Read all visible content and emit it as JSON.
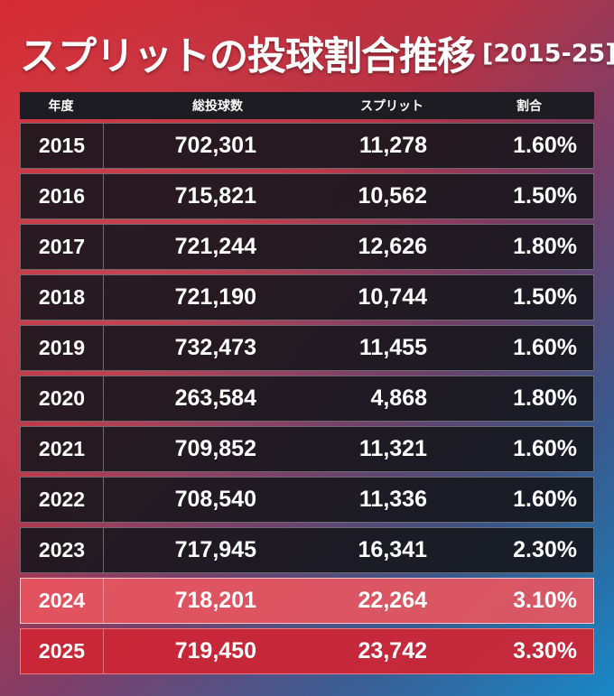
{
  "title": "スプリットの投球割合推移",
  "subtitle": "[2015-25]",
  "colors": {
    "row_default": "#16161c",
    "row_highlight_2024": "#e85660",
    "row_highlight_2025": "#cc2636",
    "text": "#ffffff"
  },
  "chart_data": {
    "type": "table",
    "title": "スプリットの投球割合推移",
    "subtitle": "[2015-25]",
    "columns": [
      "年度",
      "総投球数",
      "スプリット",
      "割合"
    ],
    "rows": [
      {
        "year": "2015",
        "total": "702,301",
        "split": "11,278",
        "pct": "1.60%"
      },
      {
        "year": "2016",
        "total": "715,821",
        "split": "10,562",
        "pct": "1.50%"
      },
      {
        "year": "2017",
        "total": "721,244",
        "split": "12,626",
        "pct": "1.80%"
      },
      {
        "year": "2018",
        "total": "721,190",
        "split": "10,744",
        "pct": "1.50%"
      },
      {
        "year": "2019",
        "total": "732,473",
        "split": "11,455",
        "pct": "1.60%"
      },
      {
        "year": "2020",
        "total": "263,584",
        "split": "4,868",
        "pct": "1.80%"
      },
      {
        "year": "2021",
        "total": "709,852",
        "split": "11,321",
        "pct": "1.60%"
      },
      {
        "year": "2022",
        "total": "708,540",
        "split": "11,336",
        "pct": "1.60%"
      },
      {
        "year": "2023",
        "total": "717,945",
        "split": "16,341",
        "pct": "2.30%"
      },
      {
        "year": "2024",
        "total": "718,201",
        "split": "22,264",
        "pct": "3.10%"
      },
      {
        "year": "2025",
        "total": "719,450",
        "split": "23,742",
        "pct": "3.30%"
      }
    ],
    "highlighted_rows": [
      "2024",
      "2025"
    ]
  }
}
